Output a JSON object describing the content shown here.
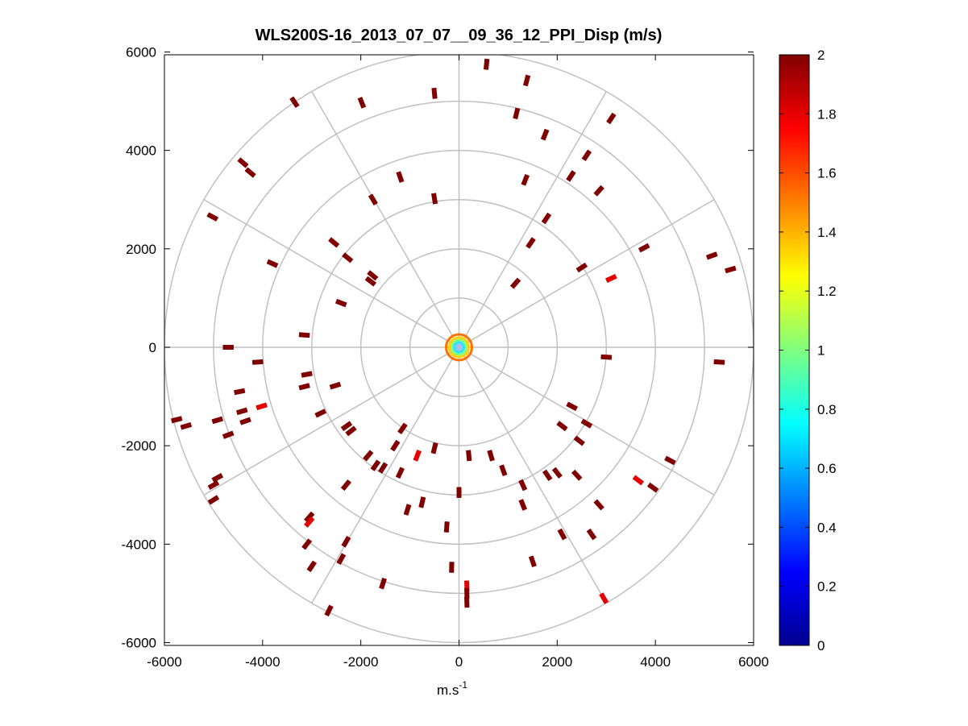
{
  "chart_data": {
    "type": "ppi_polar_scatter",
    "title": "WLS200S-16_2013_07_07__09_36_12_PPI_Disp (m/s)",
    "xlabel_base": "m.s",
    "xlabel_exp": "-1",
    "ylabel": "",
    "xlim": [
      -6000,
      6000
    ],
    "ylim": [
      -6000,
      6000
    ],
    "xticks": [
      -6000,
      -4000,
      -2000,
      0,
      2000,
      4000,
      6000
    ],
    "yticks": [
      6000,
      4000,
      2000,
      0,
      -2000,
      -4000,
      -6000
    ],
    "xtick_labels": [
      "-6000",
      "-4000",
      "-2000",
      "0",
      "2000",
      "4000",
      "6000"
    ],
    "ytick_labels": [
      "6000",
      "4000",
      "2000",
      "0",
      "-2000",
      "-4000",
      "-6000"
    ],
    "range_rings": [
      1000,
      2000,
      3000,
      4000,
      5000,
      6000
    ],
    "spoke_angles_deg": [
      0,
      30,
      60,
      90,
      120,
      150,
      180,
      210,
      240,
      270,
      300,
      330
    ],
    "grid": true,
    "colorbar": {
      "colormap": "jet",
      "range": [
        0,
        2
      ],
      "ticks": [
        0,
        0.2,
        0.4,
        0.6,
        0.8,
        1,
        1.2,
        1.4,
        1.6,
        1.8,
        2
      ],
      "tick_labels": [
        "0",
        "0.2",
        "0.4",
        "0.6",
        "0.8",
        "1",
        "1.2",
        "1.4",
        "1.6",
        "1.8",
        "2"
      ]
    },
    "colors": {
      "max_value": "#800000",
      "high_value": "#ff2000",
      "grid": "#c0c0c0"
    },
    "points": [
      {
        "x": 560,
        "y": 5750,
        "v": 2
      },
      {
        "x": 1380,
        "y": 5420,
        "v": 2
      },
      {
        "x": -500,
        "y": 5160,
        "v": 2
      },
      {
        "x": -1980,
        "y": 4970,
        "v": 2
      },
      {
        "x": -3350,
        "y": 4980,
        "v": 2
      },
      {
        "x": 1170,
        "y": 4750,
        "v": 2
      },
      {
        "x": 1750,
        "y": 4320,
        "v": 2
      },
      {
        "x": 3100,
        "y": 4650,
        "v": 2
      },
      {
        "x": 2600,
        "y": 3900,
        "v": 2
      },
      {
        "x": -4400,
        "y": 3750,
        "v": 2
      },
      {
        "x": -4250,
        "y": 3550,
        "v": 2
      },
      {
        "x": -1200,
        "y": 3460,
        "v": 2
      },
      {
        "x": 1350,
        "y": 3400,
        "v": 2
      },
      {
        "x": 2280,
        "y": 3480,
        "v": 2
      },
      {
        "x": 2850,
        "y": 3180,
        "v": 2
      },
      {
        "x": -1750,
        "y": 3000,
        "v": 2
      },
      {
        "x": -500,
        "y": 3020,
        "v": 2
      },
      {
        "x": -5020,
        "y": 2650,
        "v": 2
      },
      {
        "x": 1780,
        "y": 2620,
        "v": 2
      },
      {
        "x": -2550,
        "y": 2130,
        "v": 2
      },
      {
        "x": 1460,
        "y": 2120,
        "v": 2
      },
      {
        "x": 3770,
        "y": 2020,
        "v": 2
      },
      {
        "x": 5150,
        "y": 1860,
        "v": 2
      },
      {
        "x": 5530,
        "y": 1580,
        "v": 2
      },
      {
        "x": -3800,
        "y": 1700,
        "v": 2
      },
      {
        "x": -2270,
        "y": 1820,
        "v": 2
      },
      {
        "x": 2500,
        "y": 1620,
        "v": 2
      },
      {
        "x": 3100,
        "y": 1400,
        "v": 1.8
      },
      {
        "x": -1760,
        "y": 1460,
        "v": 2
      },
      {
        "x": -1800,
        "y": 1340,
        "v": 2
      },
      {
        "x": -2400,
        "y": 900,
        "v": 2
      },
      {
        "x": 1150,
        "y": 1300,
        "v": 2
      },
      {
        "x": -4700,
        "y": 0,
        "v": 2
      },
      {
        "x": -4100,
        "y": -300,
        "v": 2
      },
      {
        "x": -3150,
        "y": 250,
        "v": 2
      },
      {
        "x": -3100,
        "y": -550,
        "v": 2
      },
      {
        "x": -2520,
        "y": -780,
        "v": 2
      },
      {
        "x": -2290,
        "y": -1600,
        "v": 2
      },
      {
        "x": -2820,
        "y": -1340,
        "v": 2
      },
      {
        "x": -4470,
        "y": -900,
        "v": 2
      },
      {
        "x": -4420,
        "y": -1300,
        "v": 2
      },
      {
        "x": -4350,
        "y": -1500,
        "v": 2
      },
      {
        "x": -4020,
        "y": -1200,
        "v": 1.8
      },
      {
        "x": -4920,
        "y": -1480,
        "v": 2
      },
      {
        "x": -5750,
        "y": -1470,
        "v": 2
      },
      {
        "x": -5560,
        "y": -1600,
        "v": 2
      },
      {
        "x": -4700,
        "y": -1780,
        "v": 2
      },
      {
        "x": -4920,
        "y": -2650,
        "v": 2
      },
      {
        "x": -5000,
        "y": -2800,
        "v": 2
      },
      {
        "x": -5000,
        "y": -3100,
        "v": 2
      },
      {
        "x": 3000,
        "y": -200,
        "v": 2
      },
      {
        "x": 5300,
        "y": -300,
        "v": 2
      },
      {
        "x": 2300,
        "y": -1200,
        "v": 2
      },
      {
        "x": 2600,
        "y": -1550,
        "v": 2
      },
      {
        "x": 2100,
        "y": -1600,
        "v": 2
      },
      {
        "x": 2450,
        "y": -1900,
        "v": 2
      },
      {
        "x": 4300,
        "y": -2300,
        "v": 2
      },
      {
        "x": 3650,
        "y": -2700,
        "v": 1.8
      },
      {
        "x": 3950,
        "y": -2850,
        "v": 2
      },
      {
        "x": 2000,
        "y": -2550,
        "v": 2
      },
      {
        "x": 2400,
        "y": -2600,
        "v": 2
      },
      {
        "x": 2850,
        "y": -3200,
        "v": 2
      },
      {
        "x": 2700,
        "y": -3800,
        "v": 2
      },
      {
        "x": 2100,
        "y": -3800,
        "v": 2
      },
      {
        "x": 1800,
        "y": -2600,
        "v": 2
      },
      {
        "x": 1300,
        "y": -2800,
        "v": 2
      },
      {
        "x": 1300,
        "y": -3200,
        "v": 2
      },
      {
        "x": 1500,
        "y": -4350,
        "v": 2
      },
      {
        "x": 2950,
        "y": -5100,
        "v": 1.8
      },
      {
        "x": 160,
        "y": -4850,
        "v": 1.8
      },
      {
        "x": 160,
        "y": -5000,
        "v": 2
      },
      {
        "x": 160,
        "y": -5180,
        "v": 2
      },
      {
        "x": -150,
        "y": -4470,
        "v": 2
      },
      {
        "x": -250,
        "y": -3650,
        "v": 2
      },
      {
        "x": -1050,
        "y": -3300,
        "v": 2
      },
      {
        "x": -750,
        "y": -3150,
        "v": 2
      },
      {
        "x": -1200,
        "y": -2550,
        "v": 2
      },
      {
        "x": -1550,
        "y": -2450,
        "v": 2
      },
      {
        "x": -1850,
        "y": -2200,
        "v": 2
      },
      {
        "x": -850,
        "y": -2200,
        "v": 1.8
      },
      {
        "x": -500,
        "y": -2050,
        "v": 2
      },
      {
        "x": 200,
        "y": -2200,
        "v": 2
      },
      {
        "x": 650,
        "y": -2200,
        "v": 2
      },
      {
        "x": 0,
        "y": -2950,
        "v": 2
      },
      {
        "x": -3050,
        "y": -3450,
        "v": 2
      },
      {
        "x": -3050,
        "y": -3550,
        "v": 1.8
      },
      {
        "x": -3100,
        "y": -4000,
        "v": 2
      },
      {
        "x": -2300,
        "y": -3950,
        "v": 2
      },
      {
        "x": -2400,
        "y": -4300,
        "v": 2
      },
      {
        "x": -3000,
        "y": -4450,
        "v": 2
      },
      {
        "x": -1550,
        "y": -4800,
        "v": 2
      },
      {
        "x": -2650,
        "y": -5350,
        "v": 2
      },
      {
        "x": -2200,
        "y": -1700,
        "v": 2
      },
      {
        "x": -1300,
        "y": -2000,
        "v": 2
      },
      {
        "x": -1150,
        "y": -1650,
        "v": 2
      },
      {
        "x": -3150,
        "y": -800,
        "v": 2
      },
      {
        "x": -2300,
        "y": -2800,
        "v": 2
      },
      {
        "x": -1700,
        "y": -2400,
        "v": 2
      },
      {
        "x": 900,
        "y": -2500,
        "v": 2
      }
    ]
  }
}
